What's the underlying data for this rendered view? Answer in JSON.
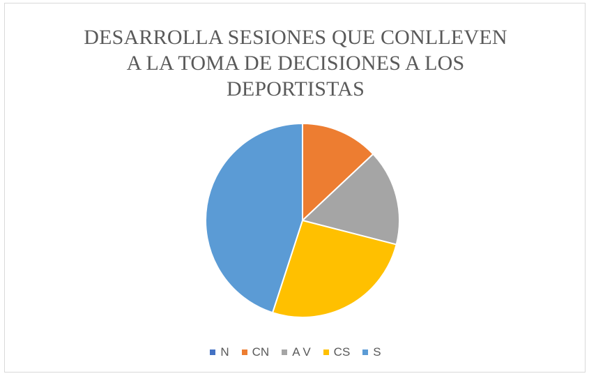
{
  "chart_data": {
    "type": "pie",
    "title_lines": [
      "DESARROLLA SESIONES QUE CONLLEVEN",
      "A LA TOMA DE DECISIONES A LOS",
      "DEPORTISTAS"
    ],
    "categories": [
      "N",
      "CN",
      "A V",
      "CS",
      "S"
    ],
    "values": [
      0,
      13,
      16,
      26,
      45
    ],
    "colors": [
      "#4472C4",
      "#ED7D31",
      "#A5A5A5",
      "#FFC000",
      "#5B9BD5"
    ],
    "legend_position": "bottom"
  }
}
